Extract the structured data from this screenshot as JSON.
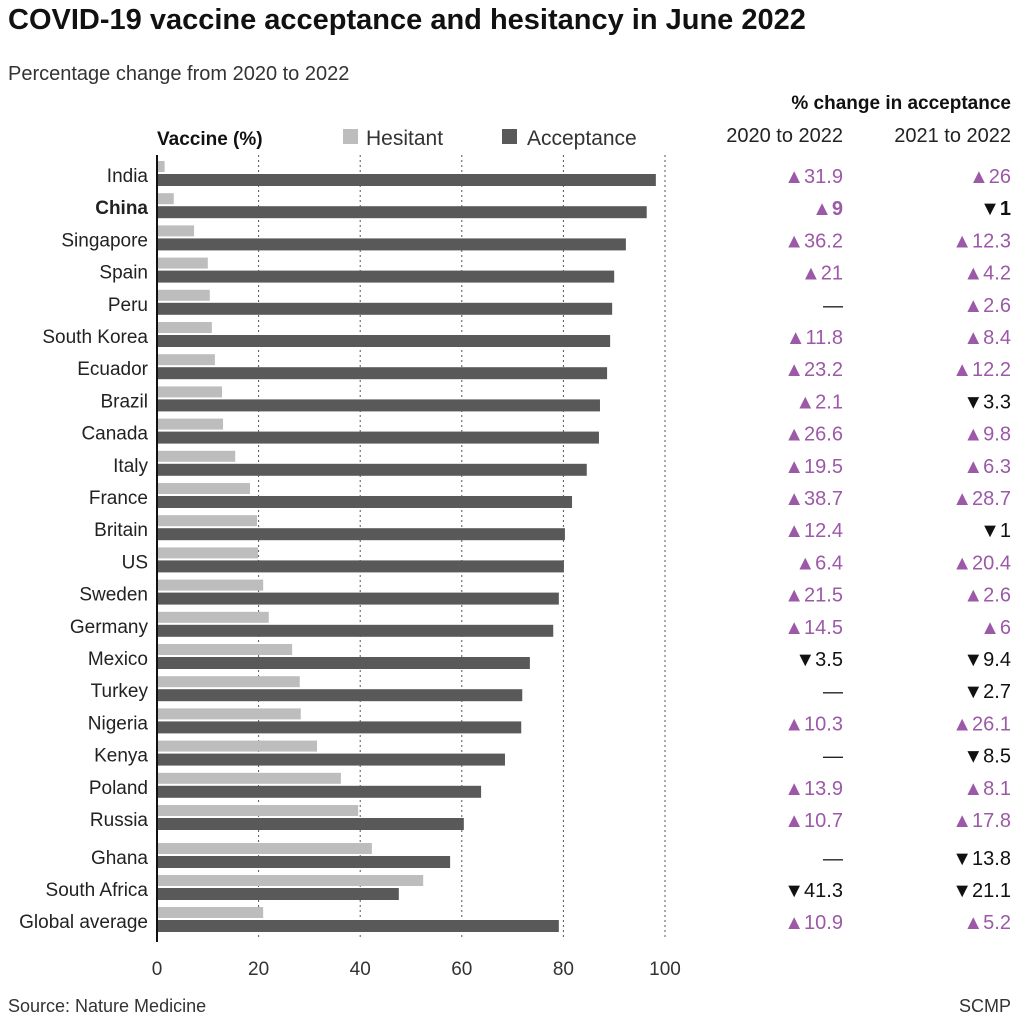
{
  "title": "COVID-19 vaccine acceptance and hesitancy in June 2022",
  "subtitle": "Percentage change from 2020 to 2022",
  "change_header": "% change in acceptance",
  "col1": "2020 to 2022",
  "col2": "2021 to 2022",
  "source": "Source: Nature Medicine",
  "credit": "SCMP",
  "colors": {
    "hesitant": "#bdbdbd",
    "acceptance": "#595959",
    "up": "#9c59a8",
    "down": "#111111"
  },
  "chart_data": {
    "type": "bar",
    "orientation": "horizontal",
    "axis_title": "Vaccine (%)",
    "xlim": [
      0,
      100
    ],
    "xticks": [
      0,
      20,
      40,
      60,
      80,
      100
    ],
    "grid": true,
    "legend": [
      "Hesitant",
      "Acceptance"
    ],
    "legend_placement": "top",
    "categories": [
      "India",
      "China",
      "Singapore",
      "Spain",
      "Peru",
      "South Korea",
      "Ecuador",
      "Brazil",
      "Canada",
      "Italy",
      "France",
      "Britain",
      "US",
      "Sweden",
      "Germany",
      "Mexico",
      "Turkey",
      "Nigeria",
      "Kenya",
      "Poland",
      "Russia",
      "Ghana",
      "South Africa",
      "Global average"
    ],
    "series": [
      {
        "name": "Hesitant",
        "values": [
          1.5,
          3.3,
          7.3,
          10.0,
          10.4,
          10.8,
          11.4,
          12.8,
          13.0,
          15.4,
          18.3,
          19.7,
          19.9,
          20.9,
          22.0,
          26.6,
          28.1,
          28.3,
          31.5,
          36.2,
          39.6,
          42.3,
          52.4,
          20.9
        ]
      },
      {
        "name": "Acceptance",
        "values": [
          98.2,
          96.4,
          92.3,
          90.0,
          89.6,
          89.2,
          88.6,
          87.2,
          87.0,
          84.6,
          81.7,
          80.3,
          80.1,
          79.1,
          78.0,
          73.4,
          71.9,
          71.7,
          68.5,
          63.8,
          60.4,
          57.7,
          47.6,
          79.1
        ]
      }
    ],
    "change_2020_2022": [
      "▲31.9",
      "▲9",
      "▲36.2",
      "▲21",
      "—",
      "▲11.8",
      "▲23.2",
      "▲2.1",
      "▲26.6",
      "▲19.5",
      "▲38.7",
      "▲12.4",
      "▲6.4",
      "▲21.5",
      "▲14.5",
      "▼3.5",
      "—",
      "▲10.3",
      "—",
      "▲13.9",
      "▲10.7",
      "—",
      "▼41.3",
      "▲10.9"
    ],
    "change_2021_2022": [
      "▲26",
      "▼1",
      "▲12.3",
      "▲4.2",
      "▲2.6",
      "▲8.4",
      "▲12.2",
      "▼3.3",
      "▲9.8",
      "▲6.3",
      "▲28.7",
      "▼1",
      "▲20.4",
      "▲2.6",
      "▲6",
      "▼9.4",
      "▼2.7",
      "▲26.1",
      "▼8.5",
      "▲8.1",
      "▲17.8",
      "▼13.8",
      "▼21.1",
      "▲5.2"
    ],
    "highlight": "China"
  }
}
